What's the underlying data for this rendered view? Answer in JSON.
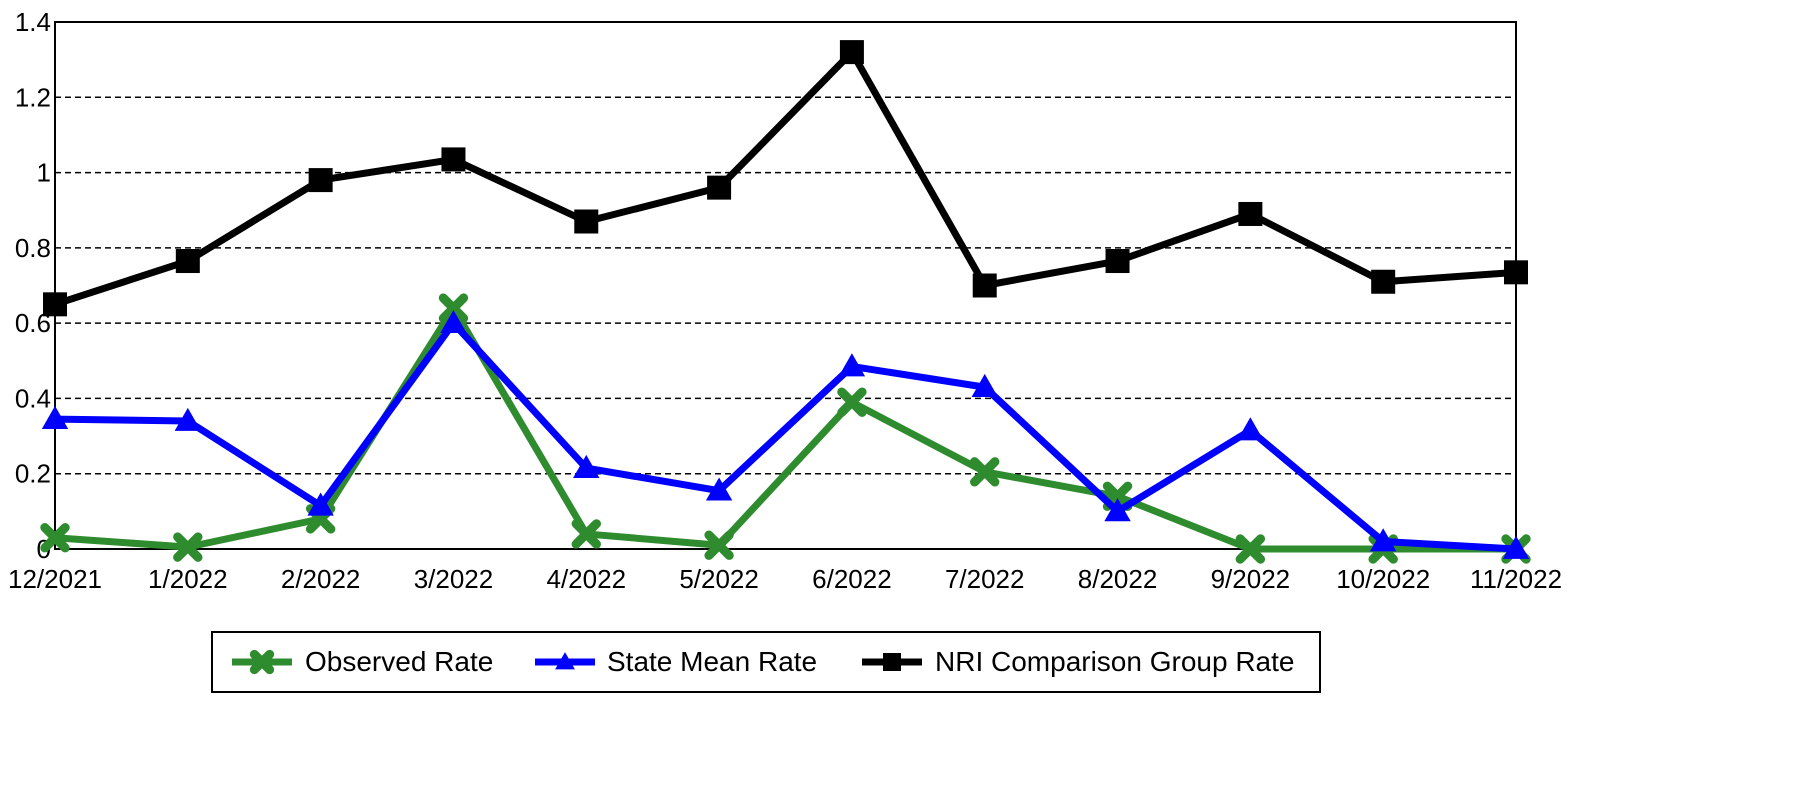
{
  "chart_data": {
    "type": "line",
    "title": "",
    "xlabel": "",
    "ylabel": "",
    "categories": [
      "12/2021",
      "1/2022",
      "2/2022",
      "3/2022",
      "4/2022",
      "5/2022",
      "6/2022",
      "7/2022",
      "8/2022",
      "9/2022",
      "10/2022",
      "11/2022"
    ],
    "ylim": [
      0,
      1.4
    ],
    "yticks": [
      "0",
      "0.2",
      "0.4",
      "0.6",
      "0.8",
      "1",
      "1.2",
      "1.4"
    ],
    "grid": "horizontal dashed",
    "legend_position": "bottom",
    "series": [
      {
        "name": "Observed Rate",
        "color": "#2e8b2e",
        "marker": "x",
        "values": [
          0.03,
          0.005,
          0.08,
          0.64,
          0.04,
          0.01,
          0.39,
          0.205,
          0.14,
          0.0,
          0.0,
          0.0
        ]
      },
      {
        "name": "State Mean Rate",
        "color": "#0000ff",
        "marker": "triangle",
        "values": [
          0.345,
          0.34,
          0.115,
          0.6,
          0.215,
          0.155,
          0.485,
          0.43,
          0.1,
          0.315,
          0.02,
          0.0
        ]
      },
      {
        "name": "NRI Comparison Group Rate",
        "color": "#000000",
        "marker": "square",
        "values": [
          0.65,
          0.765,
          0.98,
          1.035,
          0.87,
          0.96,
          1.32,
          0.7,
          0.765,
          0.89,
          0.71,
          0.735
        ]
      }
    ]
  }
}
